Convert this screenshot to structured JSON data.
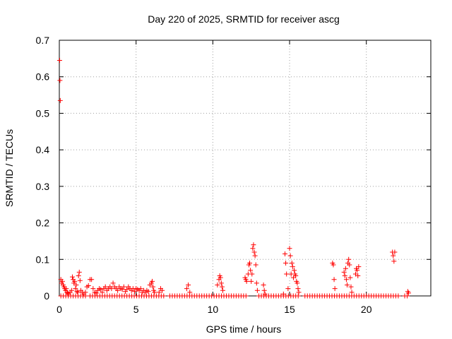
{
  "chart_data": {
    "type": "scatter",
    "title": "Day 220 of 2025, SRMTID for receiver ascg",
    "xlabel": "GPS time / hours",
    "ylabel": "SRMTID / TECUs",
    "xlim": [
      0,
      24.2
    ],
    "ylim": [
      0,
      0.7
    ],
    "xticks": [
      0,
      5,
      10,
      15,
      20
    ],
    "xtick_labels": [
      "0",
      "5",
      "10",
      "15",
      "20"
    ],
    "yticks": [
      0,
      0.1,
      0.2,
      0.3,
      0.4,
      0.5,
      0.6,
      0.7
    ],
    "ytick_labels": [
      "0",
      "0.1",
      "0.2",
      "0.3",
      "0.4",
      "0.5",
      "0.6",
      "0.7"
    ],
    "grid": true,
    "marker": "+",
    "series": [
      {
        "name": "SRMTID",
        "color": "#ff0000",
        "points": [
          [
            0.02,
            0.645
          ],
          [
            0.04,
            0.59
          ],
          [
            0.06,
            0.535
          ],
          [
            0.1,
            0.045
          ],
          [
            0.15,
            0.035
          ],
          [
            0.2,
            0.04
          ],
          [
            0.25,
            0.03
          ],
          [
            0.3,
            0.025
          ],
          [
            0.35,
            0.02
          ],
          [
            0.4,
            0.015
          ],
          [
            0.45,
            0.02
          ],
          [
            0.5,
            0.01
          ],
          [
            0.55,
            0.008
          ],
          [
            0.6,
            0.005
          ],
          [
            0.7,
            0.01
          ],
          [
            0.8,
            0.015
          ],
          [
            0.85,
            0.052
          ],
          [
            0.9,
            0.045
          ],
          [
            0.95,
            0.035
          ],
          [
            1.0,
            0.04
          ],
          [
            1.05,
            0.02
          ],
          [
            1.1,
            0.03
          ],
          [
            1.15,
            0.012
          ],
          [
            1.2,
            0.01
          ],
          [
            1.25,
            0.055
          ],
          [
            1.3,
            0.065
          ],
          [
            1.35,
            0.042
          ],
          [
            1.4,
            0.015
          ],
          [
            1.5,
            0.01
          ],
          [
            1.6,
            0.005
          ],
          [
            1.7,
            0.01
          ],
          [
            1.8,
            0.025
          ],
          [
            1.9,
            0.028
          ],
          [
            2.0,
            0.045
          ],
          [
            2.1,
            0.045
          ],
          [
            2.2,
            0.02
          ],
          [
            2.3,
            0.01
          ],
          [
            2.4,
            0.008
          ],
          [
            2.5,
            0.015
          ],
          [
            2.6,
            0.02
          ],
          [
            2.7,
            0.018
          ],
          [
            2.8,
            0.01
          ],
          [
            2.9,
            0.02
          ],
          [
            3.0,
            0.025
          ],
          [
            3.1,
            0.015
          ],
          [
            3.2,
            0.02
          ],
          [
            3.3,
            0.025
          ],
          [
            3.4,
            0.02
          ],
          [
            3.5,
            0.035
          ],
          [
            3.6,
            0.025
          ],
          [
            3.7,
            0.02
          ],
          [
            3.8,
            0.015
          ],
          [
            3.9,
            0.025
          ],
          [
            4.0,
            0.02
          ],
          [
            4.1,
            0.018
          ],
          [
            4.2,
            0.025
          ],
          [
            4.3,
            0.012
          ],
          [
            4.4,
            0.018
          ],
          [
            4.5,
            0.025
          ],
          [
            4.6,
            0.02
          ],
          [
            4.7,
            0.015
          ],
          [
            4.8,
            0.02
          ],
          [
            4.9,
            0.012
          ],
          [
            5.0,
            0.02
          ],
          [
            5.1,
            0.018
          ],
          [
            5.2,
            0.015
          ],
          [
            5.3,
            0.02
          ],
          [
            5.4,
            0.01
          ],
          [
            5.5,
            0.015
          ],
          [
            5.6,
            0.01
          ],
          [
            5.7,
            0.015
          ],
          [
            5.8,
            0.012
          ],
          [
            5.9,
            0.03
          ],
          [
            6.0,
            0.035
          ],
          [
            6.05,
            0.04
          ],
          [
            6.1,
            0.025
          ],
          [
            6.15,
            0.015
          ],
          [
            6.2,
            0.01
          ],
          [
            6.5,
            0.01
          ],
          [
            6.6,
            0.02
          ],
          [
            6.7,
            0.015
          ],
          [
            8.3,
            0.02
          ],
          [
            8.4,
            0.03
          ],
          [
            8.5,
            0.01
          ],
          [
            10.3,
            0.03
          ],
          [
            10.4,
            0.045
          ],
          [
            10.45,
            0.055
          ],
          [
            10.5,
            0.05
          ],
          [
            10.55,
            0.035
          ],
          [
            10.6,
            0.025
          ],
          [
            10.65,
            0.015
          ],
          [
            12.1,
            0.05
          ],
          [
            12.15,
            0.045
          ],
          [
            12.2,
            0.04
          ],
          [
            12.3,
            0.06
          ],
          [
            12.35,
            0.085
          ],
          [
            12.4,
            0.09
          ],
          [
            12.45,
            0.07
          ],
          [
            12.5,
            0.04
          ],
          [
            12.55,
            0.06
          ],
          [
            12.6,
            0.13
          ],
          [
            12.65,
            0.14
          ],
          [
            12.7,
            0.12
          ],
          [
            12.75,
            0.11
          ],
          [
            12.8,
            0.085
          ],
          [
            12.85,
            0.035
          ],
          [
            12.9,
            0.015
          ],
          [
            13.3,
            0.03
          ],
          [
            13.35,
            0.015
          ],
          [
            13.4,
            0.005
          ],
          [
            14.6,
            0.005
          ],
          [
            14.7,
            0.115
          ],
          [
            14.75,
            0.09
          ],
          [
            14.8,
            0.06
          ],
          [
            14.9,
            0.02
          ],
          [
            15.0,
            0.13
          ],
          [
            15.05,
            0.11
          ],
          [
            15.1,
            0.06
          ],
          [
            15.15,
            0.09
          ],
          [
            15.2,
            0.08
          ],
          [
            15.25,
            0.05
          ],
          [
            15.3,
            0.07
          ],
          [
            15.35,
            0.06
          ],
          [
            15.4,
            0.055
          ],
          [
            15.45,
            0.04
          ],
          [
            15.5,
            0.035
          ],
          [
            15.55,
            0.02
          ],
          [
            15.6,
            0.01
          ],
          [
            17.8,
            0.09
          ],
          [
            17.85,
            0.085
          ],
          [
            17.9,
            0.045
          ],
          [
            17.95,
            0.02
          ],
          [
            18.55,
            0.065
          ],
          [
            18.6,
            0.055
          ],
          [
            18.65,
            0.075
          ],
          [
            18.7,
            0.045
          ],
          [
            18.75,
            0.03
          ],
          [
            18.8,
            0.09
          ],
          [
            18.85,
            0.1
          ],
          [
            18.9,
            0.085
          ],
          [
            18.95,
            0.05
          ],
          [
            19.0,
            0.025
          ],
          [
            19.05,
            0.01
          ],
          [
            19.3,
            0.06
          ],
          [
            19.35,
            0.075
          ],
          [
            19.4,
            0.07
          ],
          [
            19.45,
            0.055
          ],
          [
            19.5,
            0.08
          ],
          [
            21.7,
            0.12
          ],
          [
            21.75,
            0.11
          ],
          [
            21.8,
            0.095
          ],
          [
            21.85,
            0.12
          ],
          [
            22.7,
            0.012
          ],
          [
            22.75,
            0.008
          ]
        ],
        "baseline_runs": [
          [
            0.1,
            1.8
          ],
          [
            2.0,
            6.8
          ],
          [
            7.2,
            12.3
          ],
          [
            13.0,
            15.7
          ],
          [
            16.0,
            22.2
          ],
          [
            22.5,
            22.8
          ]
        ],
        "baseline_step": 0.16
      }
    ]
  }
}
